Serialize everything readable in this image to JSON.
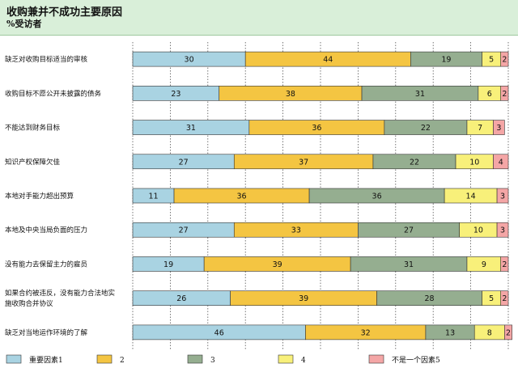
{
  "header": {
    "title": "收购兼并不成功主要原因",
    "subtitle": "%受访者"
  },
  "chart_data": {
    "type": "bar",
    "orientation": "horizontal",
    "stacked": true,
    "title": "收购兼并不成功主要原因",
    "subtitle": "%受访者",
    "xlim": [
      0,
      100
    ],
    "grid": true,
    "legend_position": "bottom",
    "categories": [
      [
        "缺乏对收购目标适当的审核"
      ],
      [
        "收购目标不愿公开未披露的债务"
      ],
      [
        "不能达到财务目标"
      ],
      [
        "知识产权保障欠佳"
      ],
      [
        "本地对手能力超出预算"
      ],
      [
        "本地及中央当局负面的压力"
      ],
      [
        "没有能力去保留主力的雇员"
      ],
      [
        "如果合约被违反，没有能力合法地实",
        "施收购合并协议"
      ],
      [
        "缺乏对当地运作环境的了解"
      ]
    ],
    "series": [
      {
        "name": "重要因素1",
        "color": "#a9d3e2",
        "values": [
          30,
          23,
          31,
          27,
          11,
          27,
          19,
          26,
          46
        ]
      },
      {
        "name": "2",
        "color": "#f4c542",
        "values": [
          44,
          38,
          36,
          37,
          36,
          33,
          39,
          39,
          32
        ]
      },
      {
        "name": "3",
        "color": "#95ae90",
        "values": [
          19,
          31,
          22,
          22,
          36,
          27,
          31,
          28,
          13
        ]
      },
      {
        "name": "4",
        "color": "#f8f07a",
        "values": [
          5,
          6,
          7,
          10,
          14,
          10,
          9,
          5,
          8
        ]
      },
      {
        "name": "不是一个因素5",
        "color": "#f4a6a6",
        "values": [
          2,
          2,
          3,
          4,
          3,
          3,
          2,
          2,
          2
        ]
      }
    ]
  }
}
